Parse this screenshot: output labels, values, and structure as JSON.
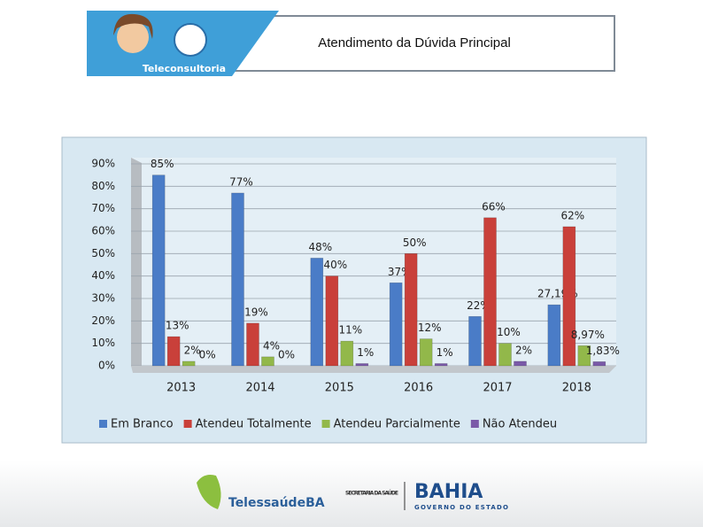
{
  "slide": {
    "title": "Atendimento da Dúvida Principal",
    "logo_caption": "Teleconsultoria",
    "footer_left": "TelessaúdeBA",
    "footer_secretaria": "SECRETARIA DA SAÚDE",
    "footer_bahia": "BAHIA",
    "footer_governo": "GOVERNO DO ESTADO"
  },
  "chart_data": {
    "type": "bar",
    "categories": [
      "2013",
      "2014",
      "2015",
      "2016",
      "2017",
      "2018"
    ],
    "series": [
      {
        "name": "Em Branco",
        "color": "#4a7cc7",
        "values": [
          85,
          77,
          48,
          37,
          22,
          27.19
        ],
        "value_labels": [
          "85%",
          "77%",
          "48%",
          "37%",
          "22%",
          "27,19%"
        ]
      },
      {
        "name": "Atendeu Totalmente",
        "color": "#c9403a",
        "values": [
          13,
          19,
          40,
          50,
          66,
          62
        ],
        "value_labels": [
          "13%",
          "19%",
          "40%",
          "50%",
          "66%",
          "62%"
        ]
      },
      {
        "name": "Atendeu Parcialmente",
        "color": "#92b84a",
        "values": [
          2,
          4,
          11,
          12,
          10,
          8.97
        ],
        "value_labels": [
          "2%",
          "4%",
          "11%",
          "12%",
          "10%",
          "8,97%"
        ]
      },
      {
        "name": "Não Atendeu",
        "color": "#7a5aa8",
        "values": [
          0,
          0,
          1,
          1,
          2,
          1.83
        ],
        "value_labels": [
          "0%",
          "0%",
          "1%",
          "1%",
          "2%",
          "1,83%"
        ]
      }
    ],
    "ylim": [
      0,
      90
    ],
    "yticks": [
      {
        "value": 0,
        "label": "0%"
      },
      {
        "value": 10,
        "label": "10%"
      },
      {
        "value": 20,
        "label": "20%"
      },
      {
        "value": 30,
        "label": "30%"
      },
      {
        "value": 40,
        "label": "40%"
      },
      {
        "value": 50,
        "label": "50%"
      },
      {
        "value": 60,
        "label": "60%"
      },
      {
        "value": 70,
        "label": "70%"
      },
      {
        "value": 80,
        "label": "80%"
      },
      {
        "value": 90,
        "label": "90%"
      }
    ],
    "grid": true,
    "legend": "bottom"
  }
}
